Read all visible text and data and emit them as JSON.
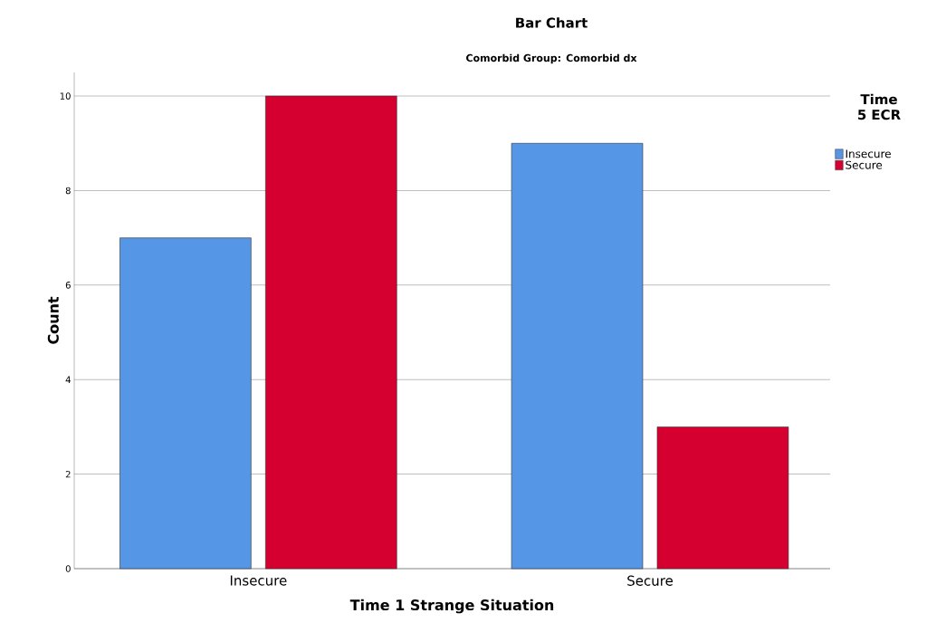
{
  "chart_data": {
    "type": "bar",
    "title": "Bar Chart",
    "subtitle": "Comorbid Group: Comorbid dx",
    "xlabel": "Time 1 Strange Situation",
    "ylabel": "Count",
    "legend_title": "Time 5 ECR",
    "categories": [
      "Insecure",
      "Secure"
    ],
    "series": [
      {
        "name": "Insecure",
        "color": "#5596e6",
        "values": [
          7,
          9
        ]
      },
      {
        "name": "Secure",
        "color": "#d5002f",
        "values": [
          10,
          3
        ]
      }
    ],
    "ylim": [
      0,
      10.5
    ],
    "yticks": [
      0,
      2,
      4,
      6,
      8,
      10
    ],
    "grid": "y",
    "legend": "top right"
  }
}
